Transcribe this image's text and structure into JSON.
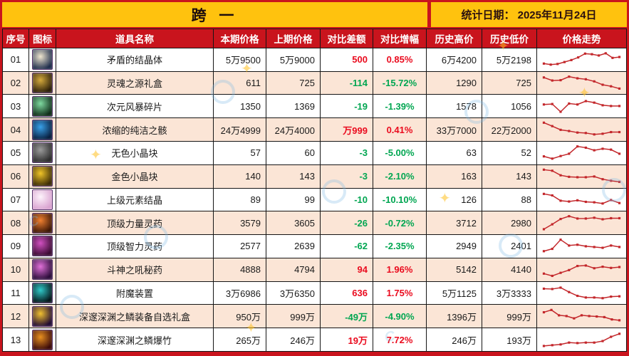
{
  "header": {
    "title": "跨 一",
    "stat_date": "统计日期：  2025年11月24日"
  },
  "colors": {
    "frame_red": "#c9141d",
    "gold": "#ffc20e",
    "header_text": "#ffffff",
    "row_alt_peach": "#fbe5d6",
    "up_red": "#ea0b1e",
    "down_green": "#00a651",
    "spark_red": "#c3272b"
  },
  "chart_data": {
    "type": "table",
    "title": "跨 一",
    "columns": [
      "序号",
      "图标",
      "道具名称",
      "本期价格",
      "上期价格",
      "对比差额",
      "对比增幅",
      "历史高价",
      "历史低价",
      "价格走势"
    ],
    "rows": [
      {
        "no": "01",
        "name": "矛盾的结晶体",
        "cur": "5万9500",
        "prev": "5万9000",
        "diff": "500",
        "dir": "up",
        "pct": "0.85%",
        "high": "6万4200",
        "low": "5万2198",
        "icon": {
          "name": "crystal-white-icon",
          "bg": "#1c2b4a",
          "fg": "#efe6cf"
        },
        "trend": [
          0.25,
          0.18,
          0.22,
          0.35,
          0.48,
          0.65,
          0.9,
          0.86,
          0.78,
          0.92,
          0.62,
          0.68
        ]
      },
      {
        "no": "02",
        "name": "灵魂之源礼盒",
        "cur": "611",
        "prev": "725",
        "diff": "-114",
        "dir": "down",
        "pct": "-15.72%",
        "high": "1290",
        "low": "725",
        "icon": {
          "name": "soul-giftbox-icon",
          "bg": "#2a1d08",
          "fg": "#d4a93c"
        },
        "trend": [
          0.88,
          0.68,
          0.7,
          0.93,
          0.82,
          0.76,
          0.62,
          0.4,
          0.3,
          0.15
        ]
      },
      {
        "no": "03",
        "name": "次元风暴碎片",
        "cur": "1350",
        "prev": "1369",
        "diff": "-19",
        "dir": "down",
        "pct": "-1.39%",
        "high": "1578",
        "low": "1056",
        "icon": {
          "name": "dimension-shard-icon",
          "bg": "#0d2b16",
          "fg": "#7fd9a0"
        },
        "trend": [
          0.6,
          0.63,
          0.12,
          0.66,
          0.6,
          0.82,
          0.72,
          0.55,
          0.5,
          0.5
        ]
      },
      {
        "no": "04",
        "name": "浓缩的纯洁之骸",
        "cur": "24万4999",
        "prev": "24万4000",
        "diff": "万999",
        "dir": "up",
        "pct": "0.41%",
        "high": "33万7000",
        "low": "22万2000",
        "icon": {
          "name": "pure-remains-icon",
          "bg": "#071d3d",
          "fg": "#39a0e8"
        },
        "trend": [
          0.95,
          0.72,
          0.48,
          0.4,
          0.3,
          0.27,
          0.18,
          0.22,
          0.33,
          0.33
        ]
      },
      {
        "no": "05",
        "name": "无色小晶块",
        "cur": "57",
        "prev": "60",
        "diff": "-3",
        "dir": "down",
        "pct": "-5.00%",
        "high": "63",
        "low": "52",
        "icon": {
          "name": "colorless-cube-icon",
          "bg": "#2b2b2b",
          "fg": "#9a9a9a"
        },
        "trend": [
          0.28,
          0.13,
          0.3,
          0.45,
          0.93,
          0.85,
          0.68,
          0.78,
          0.72,
          0.45
        ]
      },
      {
        "no": "06",
        "name": "金色小晶块",
        "cur": "140",
        "prev": "143",
        "diff": "-3",
        "dir": "down",
        "pct": "-2.10%",
        "high": "163",
        "low": "143",
        "icon": {
          "name": "golden-cube-icon",
          "bg": "#3a2a05",
          "fg": "#f0c428"
        },
        "trend": [
          0.95,
          0.88,
          0.58,
          0.48,
          0.45,
          0.45,
          0.5,
          0.32,
          0.22,
          0.15
        ]
      },
      {
        "no": "07",
        "name": "上级元素结晶",
        "cur": "89",
        "prev": "99",
        "diff": "-10",
        "dir": "down",
        "pct": "-10.10%",
        "high": "126",
        "low": "88",
        "icon": {
          "name": "element-crystal-icon",
          "bg": "#d9a3d0",
          "fg": "#fdf3fb"
        },
        "trend": [
          0.9,
          0.8,
          0.45,
          0.4,
          0.48,
          0.38,
          0.35,
          0.27,
          0.5,
          0.3
        ]
      },
      {
        "no": "08",
        "name": "顶级力量灵药",
        "cur": "3579",
        "prev": "3605",
        "diff": "-26",
        "dir": "down",
        "pct": "-0.72%",
        "high": "3712",
        "low": "2980",
        "icon": {
          "name": "strength-potion-icon",
          "bg": "#3a1505",
          "fg": "#f08030"
        },
        "trend": [
          0.08,
          0.4,
          0.75,
          0.93,
          0.78,
          0.78,
          0.83,
          0.73,
          0.8,
          0.8
        ]
      },
      {
        "no": "09",
        "name": "顶级智力灵药",
        "cur": "2577",
        "prev": "2639",
        "diff": "-62",
        "dir": "down",
        "pct": "-2.35%",
        "high": "2949",
        "low": "2401",
        "icon": {
          "name": "intelligence-potion-icon",
          "bg": "#380a30",
          "fg": "#d050c0"
        },
        "trend": [
          0.18,
          0.33,
          0.93,
          0.55,
          0.6,
          0.5,
          0.45,
          0.4,
          0.55,
          0.45
        ]
      },
      {
        "no": "10",
        "name": "斗神之吼秘药",
        "cur": "4888",
        "prev": "4794",
        "diff": "94",
        "dir": "up",
        "pct": "1.96%",
        "high": "5142",
        "low": "4140",
        "icon": {
          "name": "war-god-potion-icon",
          "bg": "#2a0a38",
          "fg": "#e070d8"
        },
        "trend": [
          0.25,
          0.1,
          0.3,
          0.48,
          0.75,
          0.78,
          0.6,
          0.7,
          0.62,
          0.68
        ]
      },
      {
        "no": "11",
        "name": "附魔装置",
        "cur": "3万6986",
        "prev": "3万6350",
        "diff": "636",
        "dir": "up",
        "pct": "1.75%",
        "high": "5万1125",
        "low": "3万3333",
        "icon": {
          "name": "enchant-device-icon",
          "bg": "#041418",
          "fg": "#30c8c8"
        },
        "trend": [
          0.8,
          0.78,
          0.87,
          0.58,
          0.33,
          0.22,
          0.22,
          0.18,
          0.28,
          0.3
        ]
      },
      {
        "no": "12",
        "name": "深邃深渊之鳞装备自选礼盒",
        "cur": "950万",
        "prev": "999万",
        "diff": "-49万",
        "dir": "down",
        "pct": "-4.90%",
        "high": "1396万",
        "low": "999万",
        "icon": {
          "name": "abyss-scale-giftbox-icon",
          "bg": "#1e0830",
          "fg": "#f0c030"
        },
        "trend": [
          0.75,
          0.9,
          0.55,
          0.5,
          0.35,
          0.55,
          0.5,
          0.47,
          0.43,
          0.28,
          0.22
        ]
      },
      {
        "no": "13",
        "name": "深邃深渊之鳞爆竹",
        "cur": "265万",
        "prev": "246万",
        "diff": "19万",
        "dir": "up",
        "pct": "7.72%",
        "high": "246万",
        "low": "193万",
        "icon": {
          "name": "abyss-firecracker-icon",
          "bg": "#3a0808",
          "fg": "#e89020"
        },
        "trend": [
          0.08,
          0.13,
          0.18,
          0.3,
          0.27,
          0.3,
          0.3,
          0.4,
          0.68,
          0.88
        ]
      }
    ]
  }
}
